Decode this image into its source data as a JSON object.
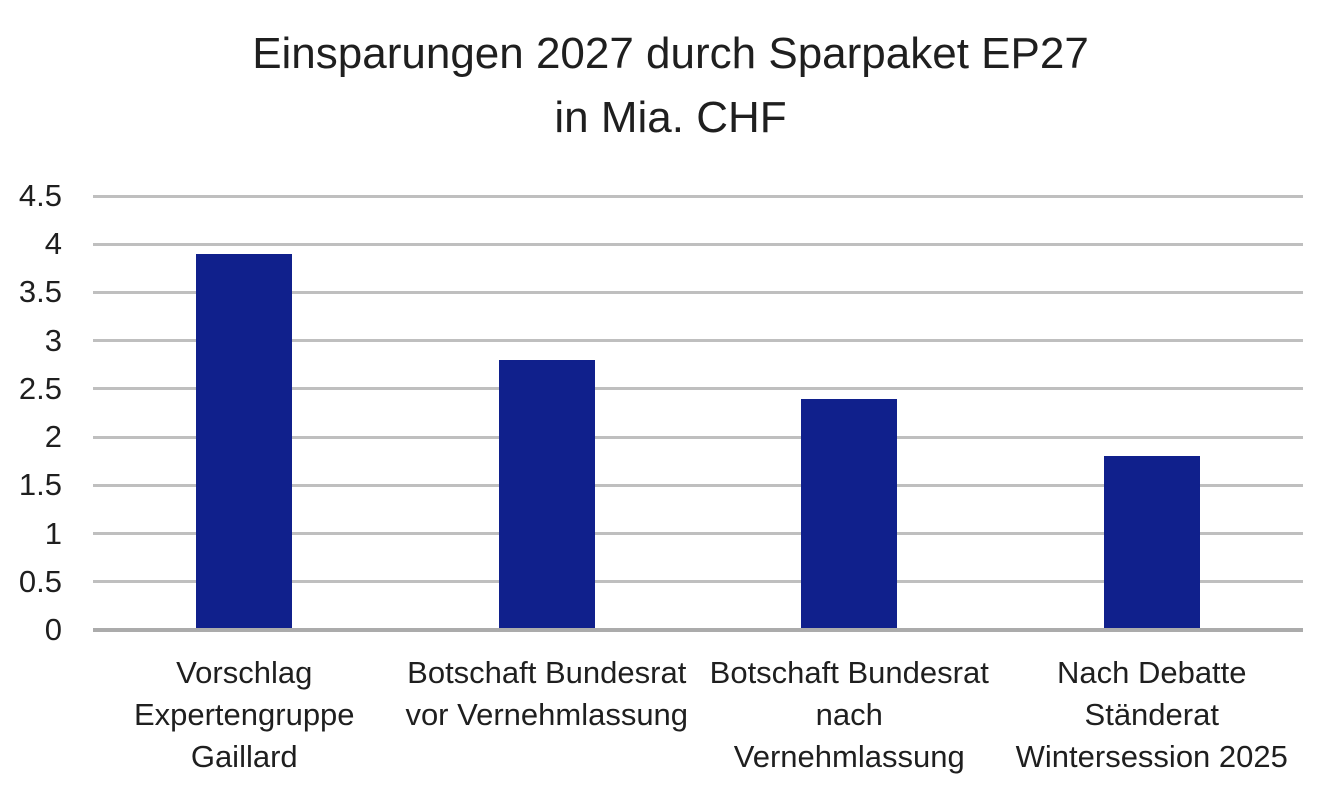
{
  "chart_data": {
    "type": "bar",
    "title": "Einsparungen 2027 durch Sparpaket EP27",
    "subtitle": "in Mia. CHF",
    "categories": [
      [
        "Vorschlag",
        "Expertengruppe",
        "Gaillard"
      ],
      [
        "Botschaft Bundesrat",
        "vor Vernehmlassung"
      ],
      [
        "Botschaft Bundesrat",
        "nach Vernehmlassung"
      ],
      [
        "Nach Debatte",
        "Ständerat",
        "Wintersession 2025"
      ]
    ],
    "values": [
      3.9,
      2.8,
      2.4,
      1.8
    ],
    "ylabel": "",
    "xlabel": "",
    "ylim": [
      0,
      4.5
    ],
    "ytick_step": 0.5,
    "ytick_labels": [
      "0",
      "0.5",
      "1",
      "1.5",
      "2",
      "2.5",
      "3",
      "3.5",
      "4",
      "4.5"
    ],
    "grid": true,
    "legend": false,
    "colors": {
      "bar": "#10208c",
      "gridline": "#bfbfbf",
      "axis_line": "#ababab",
      "text": "#1f1f1f",
      "background": "#ffffff"
    }
  }
}
